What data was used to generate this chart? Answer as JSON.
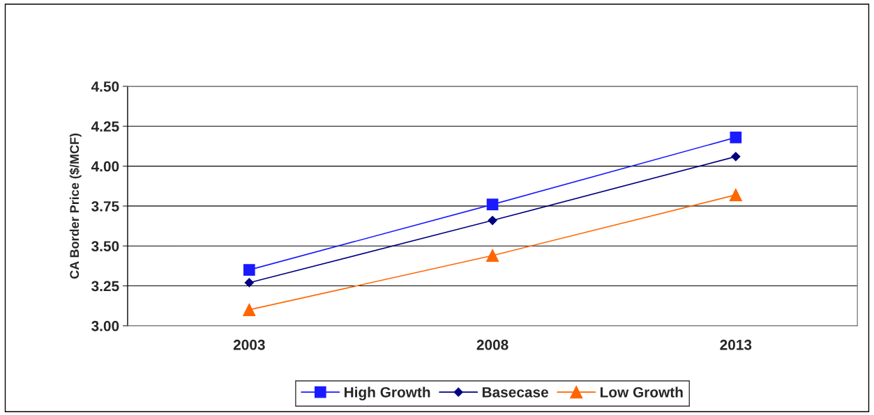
{
  "chart_data": {
    "type": "line",
    "ylabel": "CA Border Price ($/MCF)",
    "categories": [
      "2003",
      "2008",
      "2013"
    ],
    "series": [
      {
        "name": "High Growth",
        "color": "#1a1aff",
        "marker": "square",
        "values": [
          3.35,
          3.76,
          4.18
        ]
      },
      {
        "name": "Basecase",
        "color": "#000080",
        "marker": "diamond",
        "values": [
          3.27,
          3.66,
          4.06
        ]
      },
      {
        "name": "Low Growth",
        "color": "#ff6600",
        "marker": "triangle",
        "values": [
          3.1,
          3.44,
          3.82
        ]
      }
    ],
    "ylim": [
      3.0,
      4.5
    ],
    "yticks": [
      {
        "value": 3.0,
        "label": "3.00"
      },
      {
        "value": 3.25,
        "label": "3.25"
      },
      {
        "value": 3.5,
        "label": "3.50"
      },
      {
        "value": 3.75,
        "label": "3.75"
      },
      {
        "value": 4.0,
        "label": "4.00"
      },
      {
        "value": 4.25,
        "label": "4.25"
      },
      {
        "value": 4.5,
        "label": "4.50"
      }
    ],
    "grid": "y",
    "legend": "bottom",
    "line_style": "solid"
  }
}
